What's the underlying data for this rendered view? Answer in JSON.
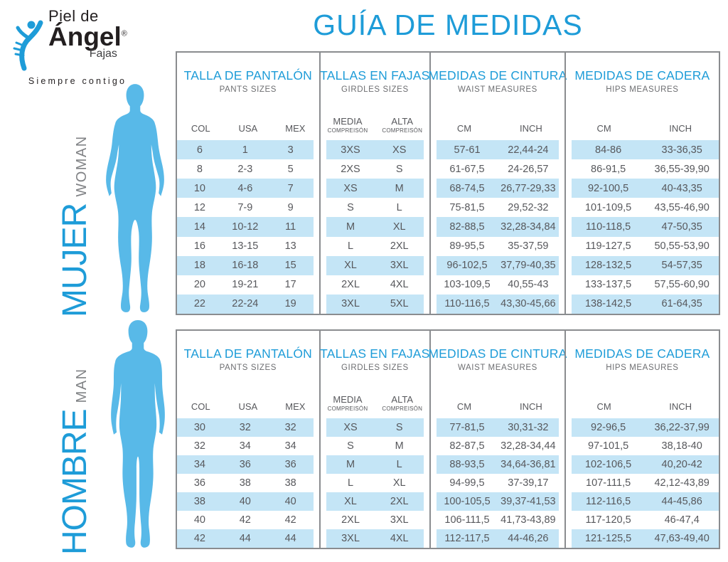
{
  "brand": {
    "name_line1": "Piel de",
    "name_line2": "Ángel",
    "registered": "®",
    "name_line3": "Fajas",
    "tagline": "Siempre contigo"
  },
  "title": "GUÍA DE MEDIDAS",
  "colors": {
    "accent_blue": "#1E9CD8",
    "stripe_blue": "#C4E5F6",
    "silhouette_blue": "#58B9E8",
    "border_gray": "#8A8C8F",
    "text_gray": "#57585C"
  },
  "group_headers": [
    {
      "title": "TALLA DE PANTALÓN",
      "subtitle": "PANTS SIZES",
      "cols": [
        "COL",
        "USA",
        "MEX"
      ]
    },
    {
      "title": "TALLAS EN FAJAS",
      "subtitle": "GIRDLES SIZES",
      "cols_main": [
        "MEDIA",
        "ALTA"
      ],
      "cols_sub": [
        "COMPREISÓN",
        "COMPREISÓN"
      ]
    },
    {
      "title": "MEDIDAS DE CINTURA",
      "subtitle": "WAIST MEASURES",
      "cols": [
        "CM",
        "INCH"
      ]
    },
    {
      "title": "MEDIDAS DE CADERA",
      "subtitle": "HIPS MEASURES",
      "cols": [
        "CM",
        "INCH"
      ]
    }
  ],
  "sections": {
    "women": {
      "label_es": "MUJER",
      "label_en": "WOMAN",
      "rows": [
        [
          "6",
          "1",
          "3",
          "3XS",
          "XS",
          "57-61",
          "22,44-24",
          "84-86",
          "33-36,35"
        ],
        [
          "8",
          "2-3",
          "5",
          "2XS",
          "S",
          "61-67,5",
          "24-26,57",
          "86-91,5",
          "36,55-39,90"
        ],
        [
          "10",
          "4-6",
          "7",
          "XS",
          "M",
          "68-74,5",
          "26,77-29,33",
          "92-100,5",
          "40-43,35"
        ],
        [
          "12",
          "7-9",
          "9",
          "S",
          "L",
          "75-81,5",
          "29,52-32",
          "101-109,5",
          "43,55-46,90"
        ],
        [
          "14",
          "10-12",
          "11",
          "M",
          "XL",
          "82-88,5",
          "32,28-34,84",
          "110-118,5",
          "47-50,35"
        ],
        [
          "16",
          "13-15",
          "13",
          "L",
          "2XL",
          "89-95,5",
          "35-37,59",
          "119-127,5",
          "50,55-53,90"
        ],
        [
          "18",
          "16-18",
          "15",
          "XL",
          "3XL",
          "96-102,5",
          "37,79-40,35",
          "128-132,5",
          "54-57,35"
        ],
        [
          "20",
          "19-21",
          "17",
          "2XL",
          "4XL",
          "103-109,5",
          "40,55-43",
          "133-137,5",
          "57,55-60,90"
        ],
        [
          "22",
          "22-24",
          "19",
          "3XL",
          "5XL",
          "110-116,5",
          "43,30-45,66",
          "138-142,5",
          "61-64,35"
        ]
      ]
    },
    "men": {
      "label_es": "HOMBRE",
      "label_en": "MAN",
      "rows": [
        [
          "30",
          "32",
          "32",
          "XS",
          "S",
          "77-81,5",
          "30,31-32",
          "92-96,5",
          "36,22-37,99"
        ],
        [
          "32",
          "34",
          "34",
          "S",
          "M",
          "82-87,5",
          "32,28-34,44",
          "97-101,5",
          "38,18-40"
        ],
        [
          "34",
          "36",
          "36",
          "M",
          "L",
          "88-93,5",
          "34,64-36,81",
          "102-106,5",
          "40,20-42"
        ],
        [
          "36",
          "38",
          "38",
          "L",
          "XL",
          "94-99,5",
          "37-39,17",
          "107-111,5",
          "42,12-43,89"
        ],
        [
          "38",
          "40",
          "40",
          "XL",
          "2XL",
          "100-105,5",
          "39,37-41,53",
          "112-116,5",
          "44-45,86"
        ],
        [
          "40",
          "42",
          "42",
          "2XL",
          "3XL",
          "106-111,5",
          "41,73-43,89",
          "117-120,5",
          "46-47,4"
        ],
        [
          "42",
          "44",
          "44",
          "3XL",
          "4XL",
          "112-117,5",
          "44-46,26",
          "121-125,5",
          "47,63-49,40"
        ]
      ]
    }
  }
}
